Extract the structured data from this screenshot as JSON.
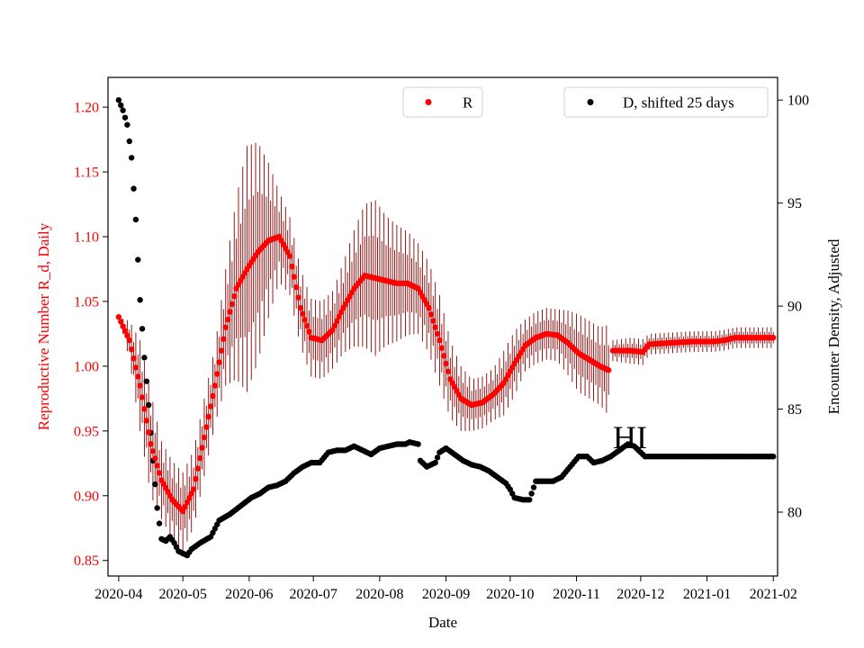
{
  "chart_data": {
    "type": "scatter",
    "xlabel": "Date",
    "y_left_label": "Reproductive Number R_d, Daily",
    "y_right_label": "Encounter Density, Adjusted",
    "x_ticks": [
      "2020-04",
      "2020-05",
      "2020-06",
      "2020-07",
      "2020-08",
      "2020-09",
      "2020-10",
      "2020-11",
      "2020-12",
      "2021-01",
      "2021-02"
    ],
    "x_range": [
      "2020-03-27",
      "2021-02-03"
    ],
    "y_left_ticks": [
      "0.85",
      "0.90",
      "0.95",
      "1.00",
      "1.05",
      "1.10",
      "1.15",
      "1.20"
    ],
    "y_left_range": [
      0.838,
      1.223
    ],
    "y_right_ticks": [
      "80",
      "85",
      "90",
      "95",
      "100"
    ],
    "y_right_range": [
      76.9,
      101.1
    ],
    "annotation": "HI",
    "annotation_at": {
      "date": "2020-11-26",
      "value": 0.945
    },
    "legend": [
      {
        "label": "R",
        "color": "#ff0000",
        "placement": "upper-center"
      },
      {
        "label": "D, shifted 25 days",
        "color": "#000000",
        "placement": "upper-right"
      }
    ],
    "series": [
      {
        "name": "R",
        "axis": "left",
        "color": "#ff0000",
        "error_color": "#8b0000",
        "points": [
          [
            "2020-04-01",
            1.038,
            0.0
          ],
          [
            "2020-04-06",
            1.02,
            0.015
          ],
          [
            "2020-04-11",
            0.985,
            0.035
          ],
          [
            "2020-04-16",
            0.94,
            0.04
          ],
          [
            "2020-04-21",
            0.912,
            0.03
          ],
          [
            "2020-04-26",
            0.897,
            0.03
          ],
          [
            "2020-05-01",
            0.888,
            0.03
          ],
          [
            "2020-05-06",
            0.905,
            0.03
          ],
          [
            "2020-05-11",
            0.945,
            0.03
          ],
          [
            "2020-05-16",
            0.985,
            0.03
          ],
          [
            "2020-05-21",
            1.03,
            0.045
          ],
          [
            "2020-05-26",
            1.06,
            0.07
          ],
          [
            "2020-05-31",
            1.075,
            0.095
          ],
          [
            "2020-06-05",
            1.088,
            0.085
          ],
          [
            "2020-06-10",
            1.097,
            0.06
          ],
          [
            "2020-06-15",
            1.1,
            0.035
          ],
          [
            "2020-06-20",
            1.085,
            0.03
          ],
          [
            "2020-06-25",
            1.045,
            0.03
          ],
          [
            "2020-06-30",
            1.022,
            0.03
          ],
          [
            "2020-07-05",
            1.02,
            0.03
          ],
          [
            "2020-07-10",
            1.028,
            0.03
          ],
          [
            "2020-07-15",
            1.045,
            0.035
          ],
          [
            "2020-07-20",
            1.06,
            0.045
          ],
          [
            "2020-07-25",
            1.07,
            0.055
          ],
          [
            "2020-07-30",
            1.068,
            0.06
          ],
          [
            "2020-08-04",
            1.066,
            0.05
          ],
          [
            "2020-08-09",
            1.064,
            0.045
          ],
          [
            "2020-08-14",
            1.064,
            0.04
          ],
          [
            "2020-08-19",
            1.06,
            0.035
          ],
          [
            "2020-08-24",
            1.045,
            0.035
          ],
          [
            "2020-08-29",
            1.02,
            0.035
          ],
          [
            "2020-09-03",
            0.99,
            0.03
          ],
          [
            "2020-09-08",
            0.975,
            0.025
          ],
          [
            "2020-09-13",
            0.97,
            0.02
          ],
          [
            "2020-09-18",
            0.972,
            0.02
          ],
          [
            "2020-09-23",
            0.978,
            0.02
          ],
          [
            "2020-09-28",
            0.987,
            0.025
          ],
          [
            "2020-10-03",
            1.002,
            0.025
          ],
          [
            "2020-10-08",
            1.016,
            0.02
          ],
          [
            "2020-10-13",
            1.022,
            0.02
          ],
          [
            "2020-10-18",
            1.025,
            0.02
          ],
          [
            "2020-10-23",
            1.024,
            0.02
          ],
          [
            "2020-10-28",
            1.018,
            0.025
          ],
          [
            "2020-11-02",
            1.01,
            0.03
          ],
          [
            "2020-11-07",
            1.005,
            0.03
          ],
          [
            "2020-11-12",
            1.0,
            0.03
          ],
          [
            "2020-11-16",
            0.997,
            0.035
          ],
          [
            "2020-11-17",
            null,
            0
          ],
          [
            "2020-11-18",
            1.012,
            0.008
          ],
          [
            "2020-11-26",
            1.012,
            0.01
          ],
          [
            "2020-12-02",
            1.011,
            0.01
          ],
          [
            "2020-12-05",
            1.017,
            0.008
          ],
          [
            "2020-12-15",
            1.018,
            0.008
          ],
          [
            "2020-12-25",
            1.019,
            0.008
          ],
          [
            "2021-01-04",
            1.019,
            0.008
          ],
          [
            "2021-01-09",
            1.02,
            0.008
          ],
          [
            "2021-01-14",
            1.022,
            0.008
          ],
          [
            "2021-01-24",
            1.022,
            0.008
          ],
          [
            "2021-02-01",
            1.022,
            0.008
          ]
        ]
      },
      {
        "name": "D, shifted 25 days",
        "axis": "right",
        "color": "#000000",
        "points": [
          [
            "2020-04-01",
            100.0
          ],
          [
            "2020-04-03",
            99.5
          ],
          [
            "2020-04-05",
            98.8
          ],
          [
            "2020-04-07",
            97.2
          ],
          [
            "2020-04-09",
            94.2
          ],
          [
            "2020-04-11",
            90.3
          ],
          [
            "2020-04-13",
            87.5
          ],
          [
            "2020-04-15",
            85.2
          ],
          [
            "2020-04-17",
            82.5
          ],
          [
            "2020-04-19",
            80.2
          ],
          [
            "2020-04-21",
            78.7
          ],
          [
            "2020-04-23",
            78.6
          ],
          [
            "2020-04-25",
            78.8
          ],
          [
            "2020-04-27",
            78.5
          ],
          [
            "2020-04-29",
            78.1
          ],
          [
            "2020-05-03",
            77.9
          ],
          [
            "2020-05-05",
            78.2
          ],
          [
            "2020-05-09",
            78.5
          ],
          [
            "2020-05-14",
            78.8
          ],
          [
            "2020-05-18",
            79.6
          ],
          [
            "2020-05-23",
            79.9
          ],
          [
            "2020-05-28",
            80.3
          ],
          [
            "2020-06-02",
            80.7
          ],
          [
            "2020-06-06",
            80.9
          ],
          [
            "2020-06-10",
            81.2
          ],
          [
            "2020-06-14",
            81.3
          ],
          [
            "2020-06-18",
            81.5
          ],
          [
            "2020-06-22",
            81.9
          ],
          [
            "2020-06-26",
            82.2
          ],
          [
            "2020-06-30",
            82.4
          ],
          [
            "2020-07-04",
            82.4
          ],
          [
            "2020-07-08",
            82.9
          ],
          [
            "2020-07-12",
            83.0
          ],
          [
            "2020-07-16",
            83.0
          ],
          [
            "2020-07-20",
            83.2
          ],
          [
            "2020-07-24",
            83.0
          ],
          [
            "2020-07-28",
            82.8
          ],
          [
            "2020-08-01",
            83.1
          ],
          [
            "2020-08-05",
            83.2
          ],
          [
            "2020-08-09",
            83.3
          ],
          [
            "2020-08-13",
            83.3
          ],
          [
            "2020-08-15",
            83.4
          ],
          [
            "2020-08-19",
            83.3
          ],
          [
            "2020-08-20",
            82.5
          ],
          [
            "2020-08-23",
            82.2
          ],
          [
            "2020-08-27",
            82.4
          ],
          [
            "2020-08-29",
            82.9
          ],
          [
            "2020-09-01",
            83.1
          ],
          [
            "2020-09-05",
            82.8
          ],
          [
            "2020-09-09",
            82.5
          ],
          [
            "2020-09-13",
            82.3
          ],
          [
            "2020-09-17",
            82.2
          ],
          [
            "2020-09-21",
            82.0
          ],
          [
            "2020-09-25",
            81.7
          ],
          [
            "2020-09-29",
            81.4
          ],
          [
            "2020-10-01",
            81.1
          ],
          [
            "2020-10-03",
            80.7
          ],
          [
            "2020-10-07",
            80.6
          ],
          [
            "2020-10-10",
            80.6
          ],
          [
            "2020-10-13",
            81.5
          ],
          [
            "2020-10-17",
            81.5
          ],
          [
            "2020-10-21",
            81.5
          ],
          [
            "2020-10-25",
            81.7
          ],
          [
            "2020-10-29",
            82.2
          ],
          [
            "2020-11-02",
            82.7
          ],
          [
            "2020-11-06",
            82.7
          ],
          [
            "2020-11-09",
            82.4
          ],
          [
            "2020-11-13",
            82.5
          ],
          [
            "2020-11-17",
            82.7
          ],
          [
            "2020-11-21",
            83.0
          ],
          [
            "2020-11-25",
            83.3
          ],
          [
            "2020-11-28",
            83.2
          ],
          [
            "2020-12-01",
            82.9
          ],
          [
            "2020-12-03",
            82.7
          ],
          [
            "2021-02-01",
            82.7
          ]
        ]
      }
    ]
  }
}
